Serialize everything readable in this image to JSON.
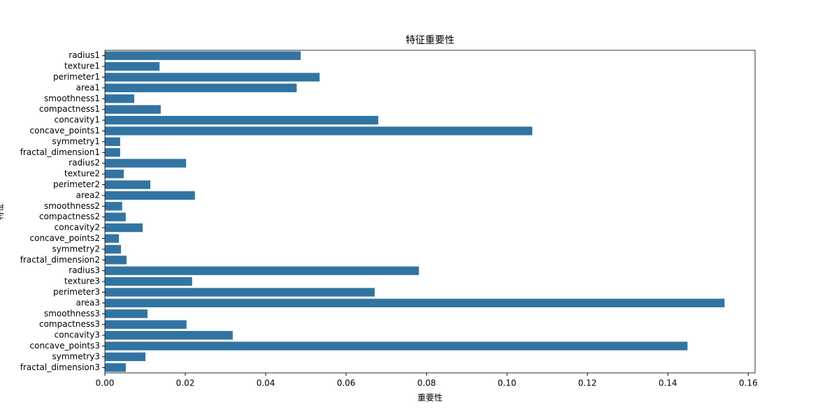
{
  "chart_data": {
    "type": "barh",
    "title": "特征重要性",
    "x_label": "重要性",
    "y_label": "特征",
    "categories": [
      "radius1",
      "texture1",
      "perimeter1",
      "area1",
      "smoothness1",
      "compactness1",
      "concavity1",
      "concave_points1",
      "symmetry1",
      "fractal_dimension1",
      "radius2",
      "texture2",
      "perimeter2",
      "area2",
      "smoothness2",
      "compactness2",
      "concavity2",
      "concave_points2",
      "symmetry2",
      "fractal_dimension2",
      "radius3",
      "texture3",
      "perimeter3",
      "area3",
      "smoothness3",
      "compactness3",
      "concavity3",
      "concave_points3",
      "symmetry3",
      "fractal_dimension3"
    ],
    "values": [
      0.0487,
      0.0136,
      0.0534,
      0.0477,
      0.0073,
      0.0139,
      0.068,
      0.1063,
      0.0038,
      0.0038,
      0.0202,
      0.0047,
      0.0113,
      0.0224,
      0.0043,
      0.0052,
      0.0094,
      0.0035,
      0.004,
      0.0054,
      0.0781,
      0.0217,
      0.0671,
      0.1541,
      0.0106,
      0.0203,
      0.0318,
      0.1449,
      0.0101,
      0.0052
    ],
    "color": "#3274a1",
    "xlim": [
      0,
      0.1617
    ],
    "xticks": [
      {
        "value": 0,
        "label": "0.00"
      },
      {
        "value": 0.02,
        "label": "0.02"
      },
      {
        "value": 0.04,
        "label": "0.04"
      },
      {
        "value": 0.06,
        "label": "0.06"
      },
      {
        "value": 0.08,
        "label": "0.08"
      },
      {
        "value": 0.1,
        "label": "0.10"
      },
      {
        "value": 0.12,
        "label": "0.12"
      },
      {
        "value": 0.14,
        "label": "0.14"
      },
      {
        "value": 0.16,
        "label": "0.16"
      }
    ]
  }
}
